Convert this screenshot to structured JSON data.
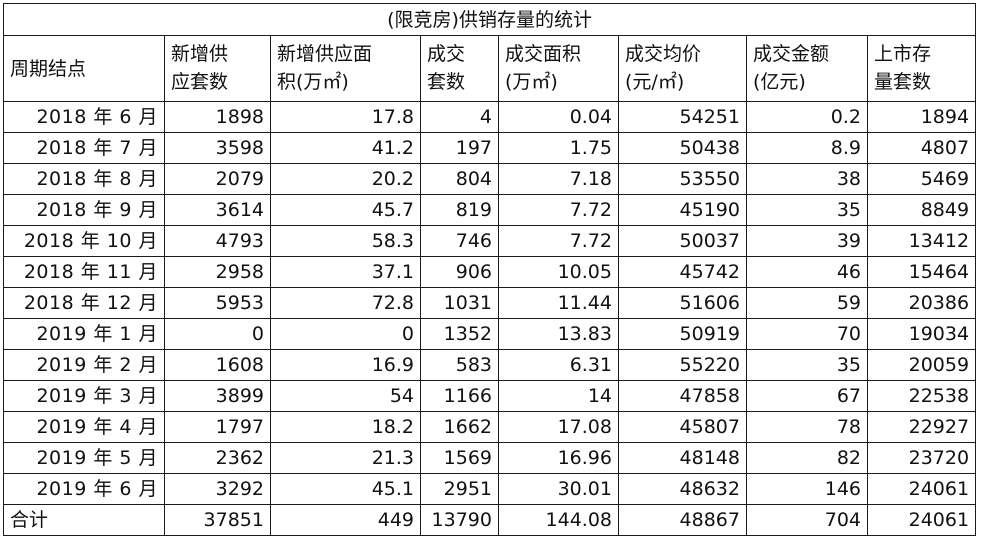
{
  "title": "(限竞房)供销存量的统计",
  "headers": [
    {
      "line1": "周期结点",
      "line2": ""
    },
    {
      "line1": "新增供",
      "line2": "应套数"
    },
    {
      "line1": "新增供应面",
      "line2": "积(万㎡)"
    },
    {
      "line1": "成交",
      "line2": "套数"
    },
    {
      "line1": "成交面积",
      "line2": "(万㎡)"
    },
    {
      "line1": "成交均价",
      "line2": "(元/㎡)"
    },
    {
      "line1": "成交金额",
      "line2": "(亿元)"
    },
    {
      "line1": "上市存",
      "line2": "量套数"
    }
  ],
  "rows": [
    {
      "period": "2018 年 6 月",
      "new_units": "1898",
      "new_area": "17.8",
      "deal_units": "4",
      "deal_area": "0.04",
      "avg_price": "54251",
      "deal_amount": "0.2",
      "stock_units": "1894"
    },
    {
      "period": "2018 年 7 月",
      "new_units": "3598",
      "new_area": "41.2",
      "deal_units": "197",
      "deal_area": "1.75",
      "avg_price": "50438",
      "deal_amount": "8.9",
      "stock_units": "4807"
    },
    {
      "period": "2018 年 8 月",
      "new_units": "2079",
      "new_area": "20.2",
      "deal_units": "804",
      "deal_area": "7.18",
      "avg_price": "53550",
      "deal_amount": "38",
      "stock_units": "5469"
    },
    {
      "period": "2018 年 9 月",
      "new_units": "3614",
      "new_area": "45.7",
      "deal_units": "819",
      "deal_area": "7.72",
      "avg_price": "45190",
      "deal_amount": "35",
      "stock_units": "8849"
    },
    {
      "period": "2018 年 10 月",
      "new_units": "4793",
      "new_area": "58.3",
      "deal_units": "746",
      "deal_area": "7.72",
      "avg_price": "50037",
      "deal_amount": "39",
      "stock_units": "13412"
    },
    {
      "period": "2018 年 11 月",
      "new_units": "2958",
      "new_area": "37.1",
      "deal_units": "906",
      "deal_area": "10.05",
      "avg_price": "45742",
      "deal_amount": "46",
      "stock_units": "15464"
    },
    {
      "period": "2018 年 12 月",
      "new_units": "5953",
      "new_area": "72.8",
      "deal_units": "1031",
      "deal_area": "11.44",
      "avg_price": "51606",
      "deal_amount": "59",
      "stock_units": "20386"
    },
    {
      "period": "2019 年 1 月",
      "new_units": "0",
      "new_area": "0",
      "deal_units": "1352",
      "deal_area": "13.83",
      "avg_price": "50919",
      "deal_amount": "70",
      "stock_units": "19034"
    },
    {
      "period": "2019 年 2 月",
      "new_units": "1608",
      "new_area": "16.9",
      "deal_units": "583",
      "deal_area": "6.31",
      "avg_price": "55220",
      "deal_amount": "35",
      "stock_units": "20059"
    },
    {
      "period": "2019 年 3 月",
      "new_units": "3899",
      "new_area": "54",
      "deal_units": "1166",
      "deal_area": "14",
      "avg_price": "47858",
      "deal_amount": "67",
      "stock_units": "22538"
    },
    {
      "period": "2019 年 4 月",
      "new_units": "1797",
      "new_area": "18.2",
      "deal_units": "1662",
      "deal_area": "17.08",
      "avg_price": "45807",
      "deal_amount": "78",
      "stock_units": "22927"
    },
    {
      "period": "2019 年 5 月",
      "new_units": "2362",
      "new_area": "21.3",
      "deal_units": "1569",
      "deal_area": "16.96",
      "avg_price": "48148",
      "deal_amount": "82",
      "stock_units": "23720"
    },
    {
      "period": "2019 年 6 月",
      "new_units": "3292",
      "new_area": "45.1",
      "deal_units": "2951",
      "deal_area": "30.01",
      "avg_price": "48632",
      "deal_amount": "146",
      "stock_units": "24061"
    }
  ],
  "total": {
    "period": "合计",
    "new_units": "37851",
    "new_area": "449",
    "deal_units": "13790",
    "deal_area": "144.08",
    "avg_price": "48867",
    "deal_amount": "704",
    "stock_units": "24061"
  }
}
